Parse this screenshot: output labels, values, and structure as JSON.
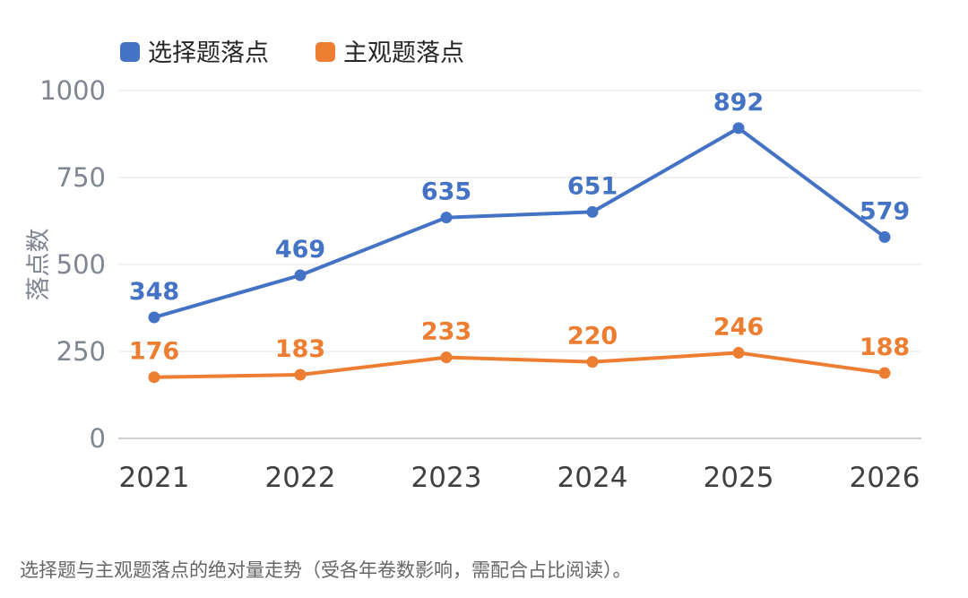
{
  "chart_data": {
    "type": "line",
    "categories": [
      "2021",
      "2022",
      "2023",
      "2024",
      "2025",
      "2026"
    ],
    "series": [
      {
        "name": "选择题落点",
        "color": "#4472C4",
        "values": [
          348,
          469,
          635,
          651,
          892,
          579
        ]
      },
      {
        "name": "主观题落点",
        "color": "#ED7D31",
        "values": [
          176,
          183,
          233,
          220,
          246,
          188
        ]
      }
    ],
    "ylabel": "落点数",
    "ylim": [
      0,
      1000
    ],
    "yticks": [
      "0",
      "250",
      "500",
      "750",
      "1000"
    ],
    "grid": true,
    "legend_position": "top-left"
  },
  "caption": "选择题与主观题落点的绝对量走势（受各年卷数影响，需配合占比阅读）。"
}
